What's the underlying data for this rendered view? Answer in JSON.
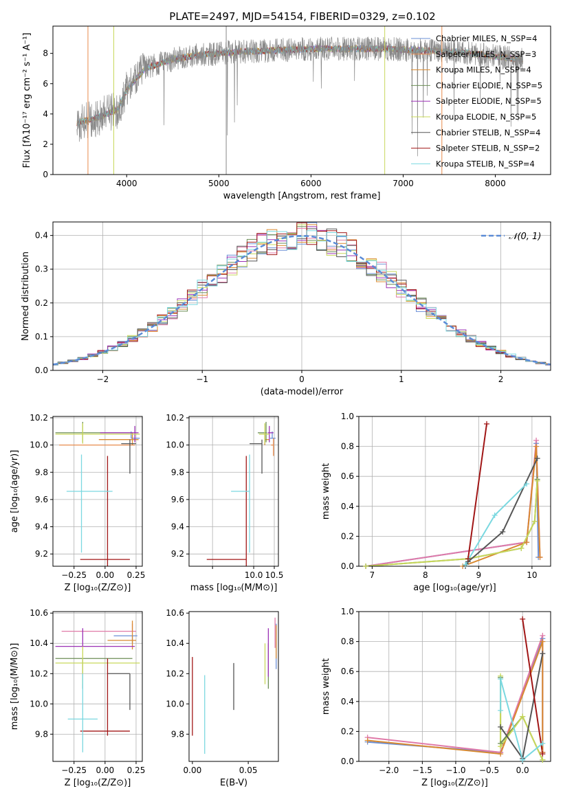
{
  "figure_title": "PLATE=2497, MJD=54154, FIBERID=0329, z=0.102",
  "series_colors": [
    "#6a8fd6",
    "#e88a4b",
    "#d9892f",
    "#6b8e55",
    "#9b30b5",
    "#c8d85a",
    "#555555",
    "#a01515",
    "#7ad8e0"
  ],
  "chart_data": [
    {
      "id": "spectrum",
      "type": "line",
      "title": "PLATE=2497, MJD=54154, FIBERID=0329, z=0.102",
      "xlabel": "wavelength [Angstrom, rest frame]",
      "ylabel": "Flux [fλ10⁻¹⁷ erg cm⁻² s⁻¹ A⁻¹]",
      "xlim": [
        3200,
        8600
      ],
      "ylim": [
        0,
        9.8
      ],
      "xticks": [
        4000,
        5000,
        6000,
        7000,
        8000
      ],
      "yticks": [
        0,
        2,
        4,
        6,
        8
      ],
      "grid": false,
      "legend_position": "upper-right",
      "x_range_data": [
        3460,
        8300
      ],
      "continuum": {
        "x": [
          3460,
          3700,
          3900,
          4000,
          4200,
          4500,
          4800,
          5200,
          5600,
          6000,
          6400,
          6800,
          7200,
          7600,
          8000,
          8300
        ],
        "y": [
          3.4,
          3.8,
          4.3,
          5.6,
          7.0,
          7.6,
          7.9,
          8.1,
          8.2,
          8.3,
          8.3,
          8.3,
          8.2,
          8.1,
          7.8,
          7.6
        ]
      },
      "series": [
        {
          "name": "Chabrier MILES, N_SSP=4"
        },
        {
          "name": "Salpeter MILES, N_SSP=3"
        },
        {
          "name": "Kroupa MILES, N_SSP=4"
        },
        {
          "name": "Chabrier ELODIE, N_SSP=5"
        },
        {
          "name": "Salpeter ELODIE, N_SSP=5"
        },
        {
          "name": "Kroupa ELODIE, N_SSP=5"
        },
        {
          "name": "Chabrier STELIB, N_SSP=4"
        },
        {
          "name": "Salpeter STELIB, N_SSP=2"
        },
        {
          "name": "Kroupa STELIB, N_SSP=4"
        }
      ]
    },
    {
      "id": "residuals",
      "type": "line",
      "xlabel": "(data-model)/error",
      "ylabel": "Normed distribution",
      "xlim": [
        -2.5,
        2.5
      ],
      "ylim": [
        0,
        0.44
      ],
      "xticks": [
        -2,
        -1,
        0,
        1,
        2
      ],
      "yticks": [
        0.0,
        0.1,
        0.2,
        0.3,
        0.4
      ],
      "grid": true,
      "legend_position": "upper-right",
      "normal_label": "𝒩(0, 1)"
    },
    {
      "id": "age-vs-Z",
      "type": "scatter",
      "xlabel": "Z [log₁₀(Z/Z⊙)]",
      "ylabel": "age  [log₁₀(age/yr)]",
      "xlim": [
        -0.42,
        0.3
      ],
      "ylim": [
        9.11,
        10.21
      ],
      "xticks": [
        -0.25,
        0.0,
        0.25
      ],
      "xticklabels": [
        "−0.25",
        "0.00",
        "0.25"
      ],
      "yticks": [
        9.2,
        9.4,
        9.6,
        9.8,
        10.0,
        10.2
      ],
      "grid": true,
      "points": [
        {
          "x": 0.21,
          "y": 10.05,
          "xerr": [
            0.0,
            0.07
          ],
          "yerr": [
            0.0,
            0.05
          ],
          "color": "#6a8fd6"
        },
        {
          "x": 0.0,
          "y": 10.0,
          "xerr": [
            0.37,
            0.24
          ],
          "yerr": [
            0.0,
            0.0
          ],
          "color": "#e88a4b"
        },
        {
          "x": 0.22,
          "y": 10.04,
          "xerr": [
            0.27,
            0.05
          ],
          "yerr": [
            0.04,
            0.05
          ],
          "color": "#d9892f"
        },
        {
          "x": -0.18,
          "y": 10.09,
          "xerr": [
            0.22,
            0.4
          ],
          "yerr": [
            0.07,
            0.08
          ],
          "color": "#6b8e55"
        },
        {
          "x": 0.24,
          "y": 10.09,
          "xerr": [
            0.28,
            0.03
          ],
          "yerr": [
            0.07,
            0.05
          ],
          "color": "#9b30b5"
        },
        {
          "x": -0.18,
          "y": 10.08,
          "xerr": [
            0.22,
            0.46
          ],
          "yerr": [
            0.07,
            0.08
          ],
          "color": "#c8d85a"
        },
        {
          "x": 0.2,
          "y": 10.01,
          "xerr": [
            0.07,
            0.05
          ],
          "yerr": [
            0.22,
            0.03
          ],
          "color": "#555555"
        },
        {
          "x": 0.02,
          "y": 9.16,
          "xerr": [
            0.22,
            0.18
          ],
          "yerr": [
            0.05,
            0.76
          ],
          "color": "#a01515"
        },
        {
          "x": -0.19,
          "y": 9.66,
          "xerr": [
            0.12,
            0.25
          ],
          "yerr": [
            0.45,
            0.27
          ],
          "color": "#7ad8e0"
        }
      ]
    },
    {
      "id": "age-vs-mass",
      "type": "scatter",
      "xlabel": "mass [log₁₀(M/M⊙)]",
      "ylabel": "",
      "xlim": [
        8.43,
        10.6
      ],
      "ylim": [
        9.11,
        10.21
      ],
      "xticks": [
        9.0,
        10.0,
        10.5
      ],
      "xticklabels": [
        "",
        "10.0",
        "10.5"
      ],
      "yticks": [
        9.2,
        9.4,
        9.6,
        9.8,
        10.0,
        10.2
      ],
      "grid": true,
      "points": [
        {
          "x": 10.45,
          "y": 10.05,
          "xerr": [
            0.05,
            0.08
          ],
          "yerr": [
            0.0,
            0.05
          ],
          "color": "#6a8fd6"
        },
        {
          "x": 10.48,
          "y": 10.0,
          "xerr": [
            0.06,
            0.0
          ],
          "yerr": [
            0.08,
            0.05
          ],
          "color": "#e88a4b"
        },
        {
          "x": 10.27,
          "y": 10.04,
          "xerr": [
            0.0,
            0.1
          ],
          "yerr": [
            0.04,
            0.05
          ],
          "color": "#d9892f"
        },
        {
          "x": 10.3,
          "y": 10.09,
          "xerr": [
            0.2,
            0.02
          ],
          "yerr": [
            0.07,
            0.08
          ],
          "color": "#6b8e55"
        },
        {
          "x": 10.38,
          "y": 10.09,
          "xerr": [
            0.04,
            0.1
          ],
          "yerr": [
            0.07,
            0.05
          ],
          "color": "#9b30b5"
        },
        {
          "x": 10.27,
          "y": 10.08,
          "xerr": [
            0.14,
            0.11
          ],
          "yerr": [
            0.07,
            0.08
          ],
          "color": "#c8d85a"
        },
        {
          "x": 10.2,
          "y": 10.01,
          "xerr": [
            0.3,
            0.0
          ],
          "yerr": [
            0.22,
            0.03
          ],
          "color": "#555555"
        },
        {
          "x": 9.82,
          "y": 9.16,
          "xerr": [
            0.96,
            0.0
          ],
          "yerr": [
            0.05,
            0.76
          ],
          "color": "#a01515"
        },
        {
          "x": 9.9,
          "y": 9.66,
          "xerr": [
            0.45,
            0.0
          ],
          "yerr": [
            0.45,
            0.27
          ],
          "color": "#7ad8e0"
        }
      ]
    },
    {
      "id": "weight-vs-age",
      "type": "line",
      "xlabel": "age  [log₁₀(age/yr)]",
      "ylabel": "mass weight",
      "xlim": [
        6.75,
        10.35
      ],
      "ylim": [
        0,
        1.0
      ],
      "xticks": [
        7,
        8,
        9,
        10
      ],
      "yticks": [
        0.0,
        0.2,
        0.4,
        0.6,
        0.8,
        1.0
      ],
      "grid": true,
      "series": [
        {
          "x": [
            6.88,
            9.9,
            10.08,
            10.12
          ],
          "y": [
            0.0,
            0.16,
            0.82,
            0.06
          ],
          "color": "#6a8fd6"
        },
        {
          "x": [
            6.88,
            9.9,
            10.08,
            10.15
          ],
          "y": [
            0.0,
            0.16,
            0.84,
            0.06
          ],
          "color": "#e07aa8"
        },
        {
          "x": [
            8.7,
            9.9,
            10.08,
            10.15
          ],
          "y": [
            0.0,
            0.16,
            0.8,
            0.06
          ],
          "color": "#d9892f"
        },
        {
          "x": [
            6.88,
            8.8,
            9.8,
            10.05,
            10.1
          ],
          "y": [
            0.0,
            0.05,
            0.12,
            0.3,
            0.58
          ],
          "color": "#6b8e55"
        },
        {
          "x": [
            6.88,
            8.8,
            9.8,
            10.05,
            10.1
          ],
          "y": [
            0.0,
            0.05,
            0.12,
            0.3,
            0.57
          ],
          "color": "#c8d85a"
        },
        {
          "x": [
            8.75,
            8.8,
            9.45,
            10.1
          ],
          "y": [
            0.0,
            0.03,
            0.23,
            0.72
          ],
          "color": "#555555"
        },
        {
          "x": [
            8.8,
            9.15
          ],
          "y": [
            0.05,
            0.95
          ],
          "color": "#a01515"
        },
        {
          "x": [
            8.75,
            9.3,
            9.9
          ],
          "y": [
            0.01,
            0.34,
            0.55
          ],
          "color": "#7ad8e0"
        }
      ]
    },
    {
      "id": "mass-vs-Z",
      "type": "scatter",
      "xlabel": "Z [log₁₀(Z/Z⊙)]",
      "ylabel": "mass [log₁₀(M/M⊙)]",
      "xlim": [
        -0.42,
        0.3
      ],
      "ylim": [
        9.62,
        10.61
      ],
      "xticks": [
        -0.25,
        0.0,
        0.25
      ],
      "xticklabels": [
        "−0.25",
        "0.00",
        "0.25"
      ],
      "yticks": [
        9.8,
        10.0,
        10.2,
        10.4,
        10.6
      ],
      "grid": true,
      "points": [
        {
          "x": 0.22,
          "y": 10.45,
          "xerr": [
            0.15,
            0.04
          ],
          "yerr": [
            0.05,
            0.0
          ],
          "color": "#6a8fd6"
        },
        {
          "x": 0.22,
          "y": 10.48,
          "xerr": [
            0.57,
            0.03
          ],
          "yerr": [
            0.0,
            0.05
          ],
          "color": "#e07aa8"
        },
        {
          "x": 0.22,
          "y": 10.42,
          "xerr": [
            0.2,
            0.03
          ],
          "yerr": [
            0.06,
            0.13
          ],
          "color": "#d9892f"
        },
        {
          "x": -0.18,
          "y": 10.3,
          "xerr": [
            0.22,
            0.4
          ],
          "yerr": [
            0.2,
            0.0
          ],
          "color": "#6b8e55"
        },
        {
          "x": -0.18,
          "y": 10.38,
          "xerr": [
            0.22,
            0.42
          ],
          "yerr": [
            0.0,
            0.12
          ],
          "color": "#9b30b5"
        },
        {
          "x": -0.18,
          "y": 10.27,
          "xerr": [
            0.22,
            0.46
          ],
          "yerr": [
            0.14,
            0.11
          ],
          "color": "#c8d85a"
        },
        {
          "x": 0.2,
          "y": 10.2,
          "xerr": [
            0.18,
            0.0
          ],
          "yerr": [
            0.24,
            0.0
          ],
          "color": "#555555"
        },
        {
          "x": 0.02,
          "y": 9.82,
          "xerr": [
            0.22,
            0.18
          ],
          "yerr": [
            0.03,
            0.48
          ],
          "color": "#a01515"
        },
        {
          "x": -0.18,
          "y": 9.9,
          "xerr": [
            0.12,
            0.12
          ],
          "yerr": [
            0.22,
            0.3
          ],
          "color": "#7ad8e0"
        }
      ]
    },
    {
      "id": "mass-vs-ebv",
      "type": "scatter",
      "xlabel": "E(B-V)",
      "ylabel": "",
      "xlim": [
        -0.003,
        0.077
      ],
      "ylim": [
        9.62,
        10.61
      ],
      "xticks": [
        0.0,
        0.05
      ],
      "xticklabels": [
        "0.00",
        "0.05"
      ],
      "yticks": [
        9.8,
        10.0,
        10.2,
        10.4,
        10.6
      ],
      "grid": false,
      "points": [
        {
          "x": 0.075,
          "y": 10.43,
          "yerr": [
            0.2,
            0.1
          ],
          "color": "#6a8fd6"
        },
        {
          "x": 0.074,
          "y": 10.45,
          "yerr": [
            0.08,
            0.12
          ],
          "color": "#e07aa8"
        },
        {
          "x": 0.075,
          "y": 10.42,
          "yerr": [
            0.12,
            0.1
          ],
          "color": "#d9892f"
        },
        {
          "x": 0.068,
          "y": 10.3,
          "yerr": [
            0.2,
            0.1
          ],
          "color": "#6b8e55"
        },
        {
          "x": 0.068,
          "y": 10.38,
          "yerr": [
            0.2,
            0.12
          ],
          "color": "#9b30b5"
        },
        {
          "x": 0.065,
          "y": 10.27,
          "yerr": [
            0.14,
            0.13
          ],
          "color": "#c8d85a"
        },
        {
          "x": 0.037,
          "y": 10.12,
          "yerr": [
            0.16,
            0.15
          ],
          "color": "#555555"
        },
        {
          "x": 0.0,
          "y": 10.05,
          "yerr": [
            0.26,
            0.26
          ],
          "color": "#a01515"
        },
        {
          "x": 0.011,
          "y": 9.93,
          "yerr": [
            0.26,
            0.26
          ],
          "color": "#7ad8e0"
        }
      ]
    },
    {
      "id": "weight-vs-Z",
      "type": "line",
      "xlabel": "Z [log₁₀(Z/Z⊙)]",
      "ylabel": "mass weight",
      "xlim": [
        -2.45,
        0.42
      ],
      "ylim": [
        0,
        1.0
      ],
      "xticks": [
        -2.0,
        -1.5,
        -1.0,
        -0.5,
        0.0
      ],
      "xticklabels": [
        "−2.0",
        "−1.5",
        "−1.0",
        "−0.5",
        "0.0"
      ],
      "yticks": [
        0.0,
        0.2,
        0.4,
        0.6,
        0.8,
        1.0
      ],
      "grid": true,
      "series": [
        {
          "x": [
            -2.32,
            -0.33,
            0.3,
            0.3
          ],
          "y": [
            0.13,
            0.06,
            0.82,
            0.06
          ],
          "color": "#6a8fd6"
        },
        {
          "x": [
            -2.32,
            -0.33,
            0.3,
            0.3
          ],
          "y": [
            0.16,
            0.06,
            0.84,
            0.06
          ],
          "color": "#e07aa8"
        },
        {
          "x": [
            -2.32,
            -0.33,
            0.3,
            0.3
          ],
          "y": [
            0.14,
            0.05,
            0.8,
            0.06
          ],
          "color": "#d9892f"
        },
        {
          "x": [
            -0.33,
            -0.33,
            0.0,
            0.3
          ],
          "y": [
            0.56,
            0.12,
            0.3,
            0.01
          ],
          "color": "#6b8e55"
        },
        {
          "x": [
            -0.33,
            -0.33,
            0.0,
            0.3
          ],
          "y": [
            0.57,
            0.1,
            0.3,
            0.01
          ],
          "color": "#c8d85a"
        },
        {
          "x": [
            -0.33,
            0.0,
            0.3
          ],
          "y": [
            0.23,
            0.02,
            0.72
          ],
          "color": "#555555"
        },
        {
          "x": [
            0.0,
            0.3
          ],
          "y": [
            0.95,
            0.05
          ],
          "color": "#a01515"
        },
        {
          "x": [
            -0.33,
            -0.33,
            0.0,
            0.3
          ],
          "y": [
            0.34,
            0.55,
            0.01,
            0.12
          ],
          "color": "#7ad8e0"
        }
      ]
    }
  ]
}
